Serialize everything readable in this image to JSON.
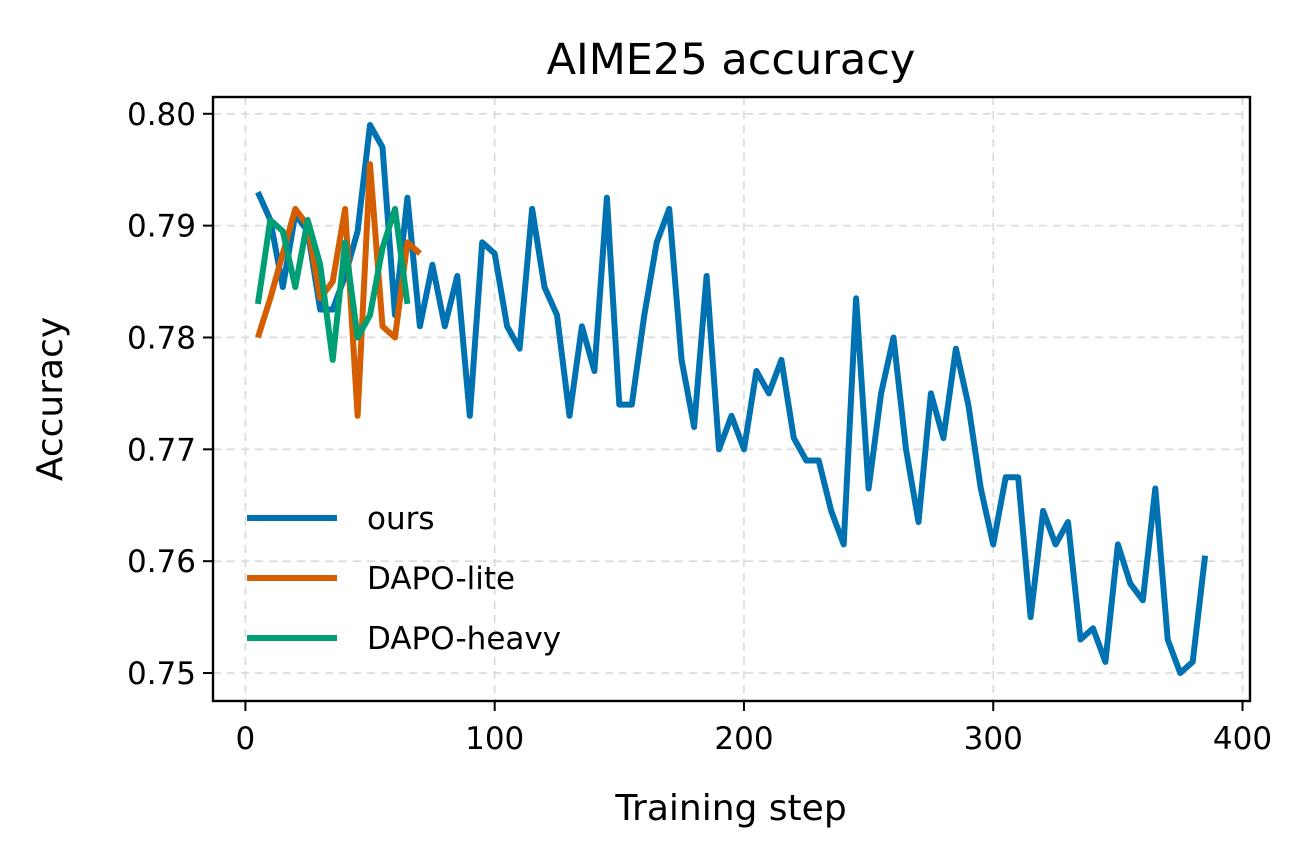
{
  "chart_data": {
    "type": "line",
    "title": "AIME25 accuracy",
    "xlabel": "Training step",
    "ylabel": "Accuracy",
    "xlim": [
      -13,
      403
    ],
    "ylim": [
      0.7475,
      0.8015
    ],
    "xticks": [
      0,
      100,
      200,
      300,
      400
    ],
    "yticks": [
      0.75,
      0.76,
      0.77,
      0.78,
      0.79,
      0.8
    ],
    "xtick_labels": [
      "0",
      "100",
      "200",
      "300",
      "400"
    ],
    "ytick_labels": [
      "0.75",
      "0.76",
      "0.77",
      "0.78",
      "0.79",
      "0.80"
    ],
    "grid": true,
    "legend_position": "lower-left",
    "series": [
      {
        "name": "ours",
        "color": "#0072B2",
        "x": [
          5,
          10,
          15,
          20,
          25,
          30,
          35,
          40,
          45,
          50,
          55,
          60,
          65,
          70,
          75,
          80,
          85,
          90,
          95,
          100,
          105,
          110,
          115,
          120,
          125,
          130,
          135,
          140,
          145,
          150,
          155,
          160,
          165,
          170,
          175,
          180,
          185,
          190,
          195,
          200,
          205,
          210,
          215,
          220,
          225,
          230,
          235,
          240,
          245,
          250,
          255,
          260,
          265,
          270,
          275,
          280,
          285,
          290,
          295,
          300,
          305,
          310,
          315,
          320,
          325,
          330,
          335,
          340,
          345,
          350,
          355,
          360,
          365,
          370,
          375,
          380,
          385
        ],
        "y": [
          0.793,
          0.7905,
          0.7845,
          0.791,
          0.7895,
          0.7825,
          0.7825,
          0.7855,
          0.7895,
          0.799,
          0.797,
          0.782,
          0.7925,
          0.781,
          0.7865,
          0.781,
          0.7855,
          0.773,
          0.7885,
          0.7875,
          0.781,
          0.779,
          0.7915,
          0.7845,
          0.782,
          0.773,
          0.781,
          0.777,
          0.7925,
          0.774,
          0.774,
          0.782,
          0.7885,
          0.7915,
          0.778,
          0.772,
          0.7855,
          0.77,
          0.773,
          0.77,
          0.777,
          0.775,
          0.778,
          0.771,
          0.769,
          0.769,
          0.7645,
          0.7615,
          0.7835,
          0.7665,
          0.775,
          0.78,
          0.77,
          0.7635,
          0.775,
          0.771,
          0.779,
          0.774,
          0.7665,
          0.7615,
          0.7675,
          0.7675,
          0.755,
          0.7645,
          0.7615,
          0.7635,
          0.753,
          0.754,
          0.751,
          0.7615,
          0.758,
          0.7565,
          0.7665,
          0.753,
          0.75,
          0.751,
          0.7605
        ]
      },
      {
        "name": "DAPO-lite",
        "color": "#D55E00",
        "x": [
          5,
          10,
          15,
          20,
          25,
          30,
          35,
          40,
          45,
          50,
          55,
          60,
          65,
          70
        ],
        "y": [
          0.78,
          0.7835,
          0.7875,
          0.7915,
          0.79,
          0.7835,
          0.785,
          0.7915,
          0.773,
          0.7955,
          0.781,
          0.78,
          0.7885,
          0.7875
        ]
      },
      {
        "name": "DAPO-heavy",
        "color": "#009E73",
        "x": [
          5,
          10,
          15,
          20,
          25,
          30,
          35,
          40,
          45,
          50,
          55,
          60,
          65
        ],
        "y": [
          0.783,
          0.7905,
          0.7895,
          0.7845,
          0.7905,
          0.7865,
          0.778,
          0.7885,
          0.78,
          0.782,
          0.788,
          0.7915,
          0.783
        ]
      }
    ]
  }
}
